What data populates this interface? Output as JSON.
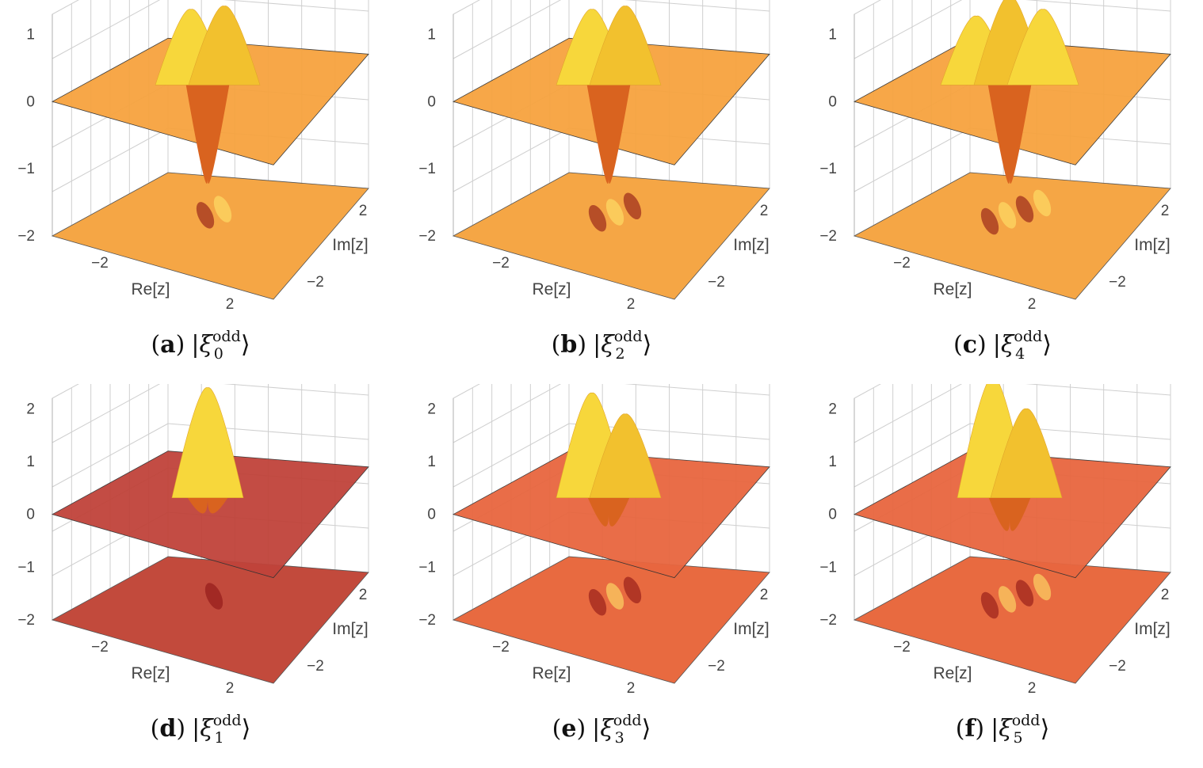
{
  "chart_data": [
    {
      "type": "surface3d",
      "panel": "a",
      "caption_label": "a",
      "state_symbol": "ξ",
      "state_sup": "odd",
      "state_index": "0",
      "xlabel": "Re[z]",
      "ylabel": "Im[z]",
      "xticks": [
        "−2",
        "2"
      ],
      "yticks": [
        "−2",
        "2"
      ],
      "zticks": [
        "1",
        "0",
        "−1",
        "−2"
      ],
      "zlim": [
        -2,
        1.3
      ],
      "plane_color": "#f7a33f",
      "floor_color": "#f5a645",
      "surface_features": {
        "min_depth": -1.6,
        "peak_heights": [
          0.9,
          0.95
        ],
        "lobes": 2
      }
    },
    {
      "type": "surface3d",
      "panel": "b",
      "caption_label": "b",
      "state_symbol": "ξ",
      "state_sup": "odd",
      "state_index": "2",
      "xlabel": "Re[z]",
      "ylabel": "Im[z]",
      "xticks": [
        "−2",
        "2"
      ],
      "yticks": [
        "−2",
        "2"
      ],
      "zticks": [
        "1",
        "0",
        "−1",
        "−2"
      ],
      "zlim": [
        -2,
        1.3
      ],
      "plane_color": "#f7a33f",
      "floor_color": "#f5a645",
      "surface_features": {
        "min_depth": -1.6,
        "peak_heights": [
          0.9,
          0.95
        ],
        "lobes": 3
      }
    },
    {
      "type": "surface3d",
      "panel": "c",
      "caption_label": "c",
      "state_symbol": "ξ",
      "state_sup": "odd",
      "state_index": "4",
      "xlabel": "Re[z]",
      "ylabel": "Im[z]",
      "xticks": [
        "−2",
        "2"
      ],
      "yticks": [
        "−2",
        "2"
      ],
      "zticks": [
        "1",
        "0",
        "−1",
        "−2"
      ],
      "zlim": [
        -2,
        1.3
      ],
      "plane_color": "#f7a33f",
      "floor_color": "#f5a645",
      "surface_features": {
        "min_depth": -1.6,
        "peak_heights": [
          0.8,
          1.1,
          0.9
        ],
        "lobes": 4
      }
    },
    {
      "type": "surface3d",
      "panel": "d",
      "caption_label": "d",
      "state_symbol": "ξ",
      "state_sup": "odd",
      "state_index": "1",
      "xlabel": "Re[z]",
      "ylabel": "Im[z]",
      "xticks": [
        "−2",
        "2"
      ],
      "yticks": [
        "−2",
        "2"
      ],
      "zticks": [
        "2",
        "1",
        "0",
        "−1",
        "−2"
      ],
      "zlim": [
        -2,
        2.2
      ],
      "plane_color": "#c0433a",
      "floor_color": "#c24a3c",
      "surface_features": {
        "min_depth": -0.3,
        "peak_heights": [
          1.8
        ],
        "lobes": 1
      }
    },
    {
      "type": "surface3d",
      "panel": "e",
      "caption_label": "e",
      "state_symbol": "ξ",
      "state_sup": "odd",
      "state_index": "3",
      "xlabel": "Re[z]",
      "ylabel": "Im[z]",
      "xticks": [
        "−2",
        "2"
      ],
      "yticks": [
        "−2",
        "2"
      ],
      "zticks": [
        "2",
        "1",
        "0",
        "−1",
        "−2"
      ],
      "zlim": [
        -2,
        2.2
      ],
      "plane_color": "#e8663f",
      "floor_color": "#e86a40",
      "surface_features": {
        "min_depth": -0.6,
        "peak_heights": [
          1.7,
          1.3
        ],
        "lobes": 3
      }
    },
    {
      "type": "surface3d",
      "panel": "f",
      "caption_label": "f",
      "state_symbol": "ξ",
      "state_sup": "odd",
      "state_index": "5",
      "xlabel": "Re[z]",
      "ylabel": "Im[z]",
      "xticks": [
        "−2",
        "2"
      ],
      "yticks": [
        "−2",
        "2"
      ],
      "zticks": [
        "2",
        "1",
        "0",
        "−1",
        "−2"
      ],
      "zlim": [
        -2,
        2.2
      ],
      "plane_color": "#e8663f",
      "floor_color": "#e86a40",
      "surface_features": {
        "min_depth": -0.7,
        "peak_heights": [
          2.0,
          1.4
        ],
        "lobes": 4
      }
    }
  ]
}
